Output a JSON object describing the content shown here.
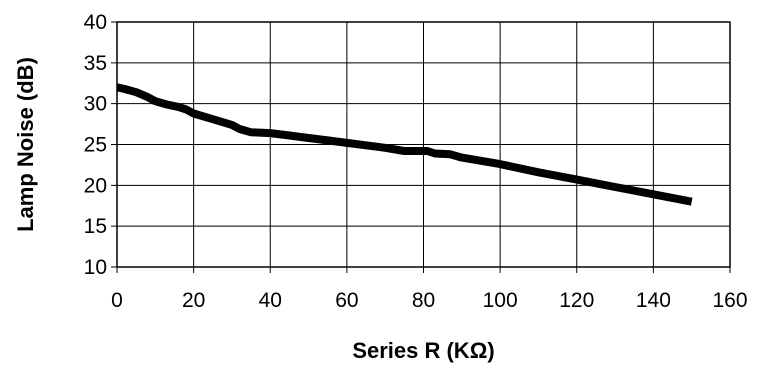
{
  "chart_data": {
    "type": "line",
    "title": "",
    "xlabel": "Series R (KΩ)",
    "ylabel": "Lamp Noise (dB)",
    "xlim": [
      0,
      160
    ],
    "ylim": [
      10,
      40
    ],
    "x_ticks": [
      0,
      20,
      40,
      60,
      80,
      100,
      120,
      140,
      160
    ],
    "y_ticks": [
      10,
      15,
      20,
      25,
      30,
      35,
      40
    ],
    "grid": true,
    "legend": "none",
    "line_color": "#000000",
    "series": [
      {
        "x": [
          0,
          2,
          5,
          8,
          10,
          13,
          16,
          18,
          20,
          25,
          30,
          32,
          35,
          40,
          45,
          50,
          55,
          60,
          65,
          70,
          75,
          78,
          81,
          83,
          87,
          90,
          95,
          100,
          110,
          120,
          130,
          140,
          150
        ],
        "y": [
          32.0,
          31.8,
          31.4,
          30.8,
          30.3,
          29.9,
          29.6,
          29.3,
          28.8,
          28.1,
          27.4,
          26.9,
          26.5,
          26.4,
          26.1,
          25.8,
          25.5,
          25.2,
          24.9,
          24.6,
          24.2,
          24.2,
          24.2,
          23.9,
          23.8,
          23.4,
          23.0,
          22.6,
          21.6,
          20.7,
          19.8,
          18.9,
          18.0
        ]
      }
    ]
  }
}
